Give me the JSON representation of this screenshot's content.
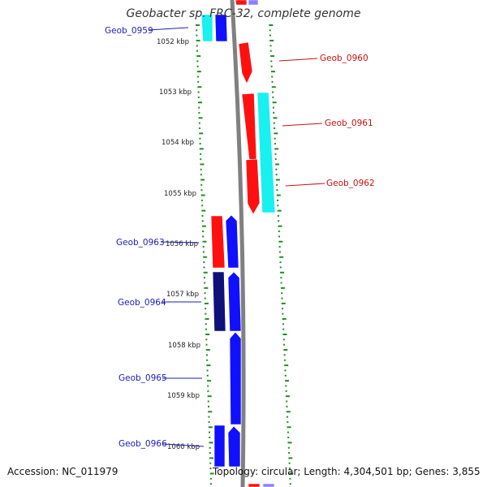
{
  "title": "Geobacter sp. FRC-32, complete genome",
  "accession": "Accession: NC_011979",
  "topology": "Topology: circular; Length: 4,304,501 bp; Genes: 3,855",
  "colors": {
    "red": "#ff1010",
    "blue": "#1010ff",
    "cyan": "#19f0f0",
    "navy": "#10107a",
    "lavender": "#8a80ff",
    "label_left": "#1c1cbb",
    "label_right": "#cc1010",
    "tick": "#228b22",
    "backbone": "#808080"
  },
  "kbp_labels": [
    "1052 kbp",
    "1053 kbp",
    "1054 kbp",
    "1055 kbp",
    "1056 kbp",
    "1057 kbp",
    "1058 kbp",
    "1059 kbp",
    "1060 kbp"
  ],
  "gene_labels": [
    {
      "name": "Geob_0959",
      "side": "left"
    },
    {
      "name": "Geob_0960",
      "side": "right"
    },
    {
      "name": "Geob_0961",
      "side": "right"
    },
    {
      "name": "Geob_0962",
      "side": "right"
    },
    {
      "name": "Geob_0963",
      "side": "left"
    },
    {
      "name": "Geob_0964",
      "side": "left"
    },
    {
      "name": "Geob_0965",
      "side": "left"
    },
    {
      "name": "Geob_0966",
      "side": "left"
    }
  ]
}
